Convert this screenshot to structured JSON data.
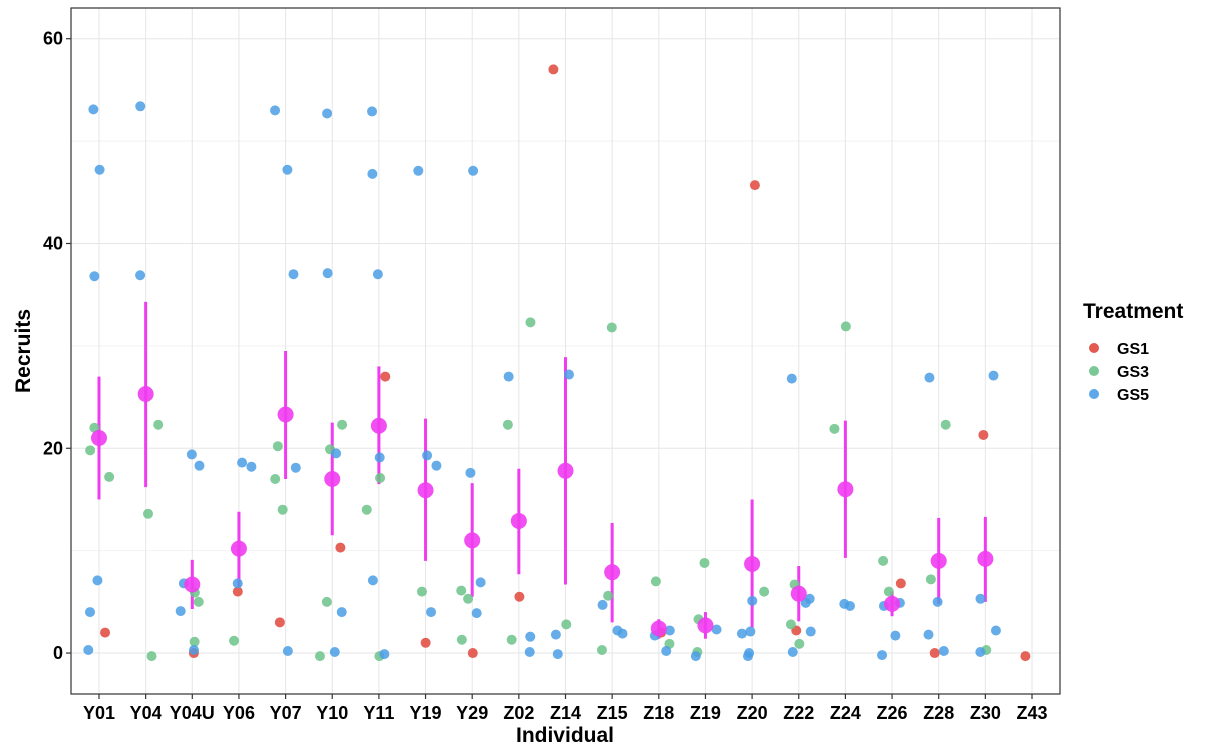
{
  "chart_data": {
    "type": "scatter",
    "xlabel": "Individual",
    "ylabel": "Recruits",
    "ylim": [
      -4,
      63
    ],
    "yticks": [
      0,
      20,
      40,
      60
    ],
    "grid": true,
    "legend": {
      "title": "Treatment",
      "position": "right"
    },
    "categories": [
      "Y01",
      "Y04",
      "Y04U",
      "Y06",
      "Y07",
      "Y10",
      "Y11",
      "Y19",
      "Y29",
      "Z02",
      "Z14",
      "Z15",
      "Z18",
      "Z19",
      "Z20",
      "Z22",
      "Z24",
      "Z26",
      "Z28",
      "Z30",
      "Z43"
    ],
    "series": [
      {
        "name": "GS1",
        "color": "#e0463c",
        "points": [
          [
            "Y01",
            2
          ],
          [
            "Y04U",
            0
          ],
          [
            "Y06",
            6
          ],
          [
            "Y07",
            3
          ],
          [
            "Y10",
            10.3
          ],
          [
            "Y11",
            27
          ],
          [
            "Y19",
            1
          ],
          [
            "Y29",
            0
          ],
          [
            "Z02",
            5.5
          ],
          [
            "Z14",
            57
          ],
          [
            "Z18",
            2
          ],
          [
            "Z20",
            45.7
          ],
          [
            "Z22",
            2.2
          ],
          [
            "Z26",
            6.8
          ],
          [
            "Z28",
            0
          ],
          [
            "Z30",
            21.3
          ],
          [
            "Z43",
            -0.3
          ]
        ]
      },
      {
        "name": "GS3",
        "color": "#6cc28a",
        "points": [
          [
            "Y01",
            17.2
          ],
          [
            "Y01",
            22
          ],
          [
            "Y01",
            19.8
          ],
          [
            "Y04",
            22.3
          ],
          [
            "Y04",
            13.6
          ],
          [
            "Y04",
            -0.3
          ],
          [
            "Y04U",
            5.9
          ],
          [
            "Y04U",
            5
          ],
          [
            "Y04U",
            1.1
          ],
          [
            "Y06",
            1.2
          ],
          [
            "Y07",
            20.2
          ],
          [
            "Y07",
            17
          ],
          [
            "Y07",
            14
          ],
          [
            "Y10",
            22.3
          ],
          [
            "Y10",
            19.9
          ],
          [
            "Y10",
            5
          ],
          [
            "Y10",
            -0.3
          ],
          [
            "Y11",
            14
          ],
          [
            "Y11",
            17.1
          ],
          [
            "Y11",
            -0.3
          ],
          [
            "Y19",
            6
          ],
          [
            "Y29",
            5.3
          ],
          [
            "Y29",
            6.1
          ],
          [
            "Y29",
            1.3
          ],
          [
            "Z02",
            32.3
          ],
          [
            "Z02",
            22.3
          ],
          [
            "Z02",
            1.3
          ],
          [
            "Z14",
            2.8
          ],
          [
            "Z15",
            31.8
          ],
          [
            "Z15",
            5.6
          ],
          [
            "Z15",
            0.3
          ],
          [
            "Z18",
            7
          ],
          [
            "Z18",
            0.9
          ],
          [
            "Z19",
            8.8
          ],
          [
            "Z19",
            3.3
          ],
          [
            "Z19",
            0.1
          ],
          [
            "Z20",
            6
          ],
          [
            "Z22",
            6.7
          ],
          [
            "Z22",
            2.8
          ],
          [
            "Z22",
            0.9
          ],
          [
            "Z24",
            21.9
          ],
          [
            "Z24",
            31.9
          ],
          [
            "Z26",
            6
          ],
          [
            "Z26",
            9
          ],
          [
            "Z28",
            22.3
          ],
          [
            "Z28",
            7.2
          ],
          [
            "Z30",
            0.3
          ]
        ]
      },
      {
        "name": "GS5",
        "color": "#4a9ee5",
        "points": [
          [
            "Y01",
            53.1
          ],
          [
            "Y01",
            47.2
          ],
          [
            "Y01",
            36.8
          ],
          [
            "Y01",
            7.1
          ],
          [
            "Y01",
            4
          ],
          [
            "Y01",
            0.3
          ],
          [
            "Y04",
            53.4
          ],
          [
            "Y04",
            36.9
          ],
          [
            "Y04U",
            19.4
          ],
          [
            "Y04U",
            18.3
          ],
          [
            "Y04U",
            6.8
          ],
          [
            "Y04U",
            4.1
          ],
          [
            "Y04U",
            0.3
          ],
          [
            "Y06",
            18.6
          ],
          [
            "Y06",
            18.2
          ],
          [
            "Y06",
            6.8
          ],
          [
            "Y07",
            53
          ],
          [
            "Y07",
            47.2
          ],
          [
            "Y07",
            37
          ],
          [
            "Y07",
            18.1
          ],
          [
            "Y07",
            0.2
          ],
          [
            "Y10",
            52.7
          ],
          [
            "Y10",
            37.1
          ],
          [
            "Y10",
            19.5
          ],
          [
            "Y10",
            4
          ],
          [
            "Y10",
            0.1
          ],
          [
            "Y11",
            52.9
          ],
          [
            "Y11",
            46.8
          ],
          [
            "Y11",
            37
          ],
          [
            "Y11",
            19.1
          ],
          [
            "Y11",
            7.1
          ],
          [
            "Y11",
            -0.1
          ],
          [
            "Y19",
            47.1
          ],
          [
            "Y19",
            19.3
          ],
          [
            "Y19",
            18.3
          ],
          [
            "Y19",
            4
          ],
          [
            "Y29",
            47.1
          ],
          [
            "Y29",
            17.6
          ],
          [
            "Y29",
            6.9
          ],
          [
            "Y29",
            3.9
          ],
          [
            "Z02",
            27
          ],
          [
            "Z02",
            1.6
          ],
          [
            "Z02",
            0.1
          ],
          [
            "Z14",
            27.2
          ],
          [
            "Z14",
            1.8
          ],
          [
            "Z14",
            -0.1
          ],
          [
            "Z15",
            4.7
          ],
          [
            "Z15",
            2.2
          ],
          [
            "Z15",
            1.9
          ],
          [
            "Z18",
            2.2
          ],
          [
            "Z18",
            1.7
          ],
          [
            "Z18",
            0.2
          ],
          [
            "Z19",
            2.3
          ],
          [
            "Z19",
            -0.3
          ],
          [
            "Z20",
            5.1
          ],
          [
            "Z20",
            2.1
          ],
          [
            "Z20",
            1.9
          ],
          [
            "Z20",
            -0.3
          ],
          [
            "Z20",
            0
          ],
          [
            "Z22",
            26.8
          ],
          [
            "Z22",
            5.3
          ],
          [
            "Z22",
            4.9
          ],
          [
            "Z22",
            2.1
          ],
          [
            "Z22",
            0.1
          ],
          [
            "Z24",
            4.6
          ],
          [
            "Z24",
            4.8
          ],
          [
            "Z26",
            4.6
          ],
          [
            "Z26",
            4.9
          ],
          [
            "Z26",
            1.7
          ],
          [
            "Z26",
            -0.2
          ],
          [
            "Z28",
            26.9
          ],
          [
            "Z28",
            5
          ],
          [
            "Z28",
            1.8
          ],
          [
            "Z28",
            0.2
          ],
          [
            "Z30",
            27.1
          ],
          [
            "Z30",
            5.3
          ],
          [
            "Z30",
            2.2
          ],
          [
            "Z30",
            0.1
          ]
        ]
      }
    ],
    "summary": {
      "color": "#f03cf0",
      "points": [
        {
          "x": "Y01",
          "mean": 21,
          "low": 15,
          "high": 27
        },
        {
          "x": "Y04",
          "mean": 25.3,
          "low": 16.2,
          "high": 34.3
        },
        {
          "x": "Y04U",
          "mean": 6.7,
          "low": 4.3,
          "high": 9.1
        },
        {
          "x": "Y06",
          "mean": 10.2,
          "low": 6.5,
          "high": 13.8
        },
        {
          "x": "Y07",
          "mean": 23.3,
          "low": 17,
          "high": 29.5
        },
        {
          "x": "Y10",
          "mean": 17,
          "low": 11.5,
          "high": 22.5
        },
        {
          "x": "Y11",
          "mean": 22.2,
          "low": 16.5,
          "high": 28
        },
        {
          "x": "Y19",
          "mean": 15.9,
          "low": 9,
          "high": 22.9
        },
        {
          "x": "Y29",
          "mean": 11,
          "low": 5.5,
          "high": 16.6
        },
        {
          "x": "Z02",
          "mean": 12.9,
          "low": 7.7,
          "high": 18
        },
        {
          "x": "Z14",
          "mean": 17.8,
          "low": 6.7,
          "high": 28.9
        },
        {
          "x": "Z15",
          "mean": 7.9,
          "low": 3,
          "high": 12.7
        },
        {
          "x": "Z18",
          "mean": 2.4,
          "low": 1.4,
          "high": 3.3
        },
        {
          "x": "Z19",
          "mean": 2.7,
          "low": 1.4,
          "high": 4
        },
        {
          "x": "Z20",
          "mean": 8.7,
          "low": 2.5,
          "high": 15
        },
        {
          "x": "Z22",
          "mean": 5.8,
          "low": 3.1,
          "high": 8.5
        },
        {
          "x": "Z24",
          "mean": 16,
          "low": 9.3,
          "high": 22.7
        },
        {
          "x": "Z26",
          "mean": 4.8,
          "low": 3.6,
          "high": 6
        },
        {
          "x": "Z28",
          "mean": 9,
          "low": 4.8,
          "high": 13.2
        },
        {
          "x": "Z30",
          "mean": 9.2,
          "low": 5,
          "high": 13.3
        }
      ]
    }
  }
}
